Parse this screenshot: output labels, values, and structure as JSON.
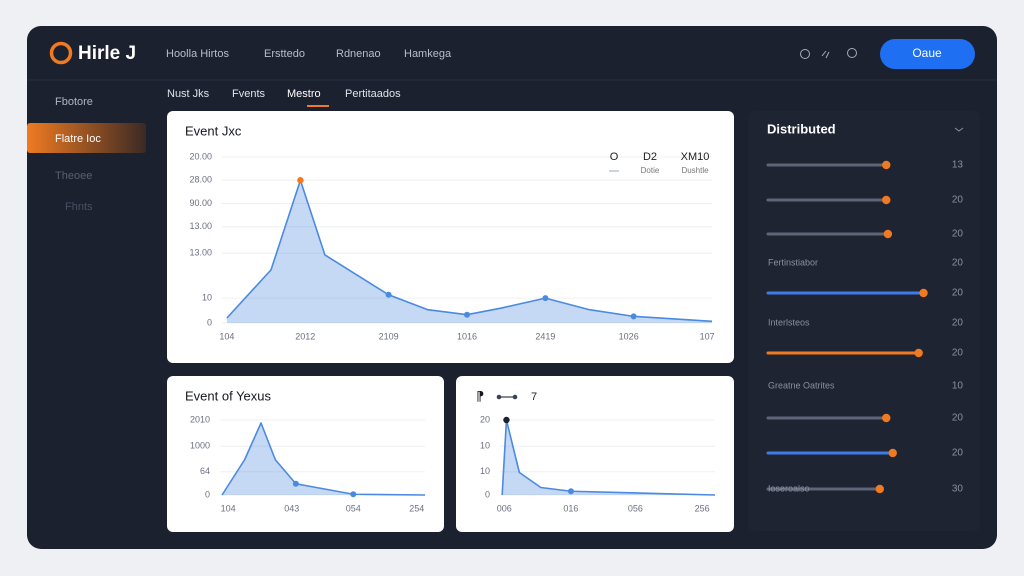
{
  "header": {
    "logo": "Hirle J",
    "nav": [
      "Hoolla Hirtos",
      "Ersttedo",
      "Rdnenao",
      "Hamkega"
    ],
    "button": "Oaue"
  },
  "sidebar": [
    "Fbotore",
    "Flatre Ioc",
    "Theoee",
    "Fhnts"
  ],
  "tabs": [
    "Nust Jks",
    "Fvents",
    "Mestro",
    "Pertitaados"
  ],
  "chart_data": [
    {
      "type": "area",
      "title": "Event Jxc",
      "legend": [
        {
          "name": "O"
        },
        {
          "name": "D2",
          "note": "Dotie"
        },
        {
          "name": "XM10",
          "note": "Dushtle"
        }
      ],
      "x": [
        1,
        10,
        16,
        21,
        34,
        42,
        50,
        57,
        66,
        75,
        84,
        100
      ],
      "xlim": [
        0,
        100
      ],
      "ylim": [
        0,
        100
      ],
      "xticks": [
        {
          "value": 1,
          "label": "104"
        },
        {
          "value": 17,
          "label": "2012"
        },
        {
          "value": 34,
          "label": "2109"
        },
        {
          "value": 50,
          "label": "1016"
        },
        {
          "value": 66,
          "label": "2419"
        },
        {
          "value": 83,
          "label": "1026"
        },
        {
          "value": 99,
          "label": "107"
        }
      ],
      "yticks": [
        {
          "value": 100,
          "label": "20.00"
        },
        {
          "value": 86,
          "label": "28.00"
        },
        {
          "value": 72,
          "label": "90.00"
        },
        {
          "value": 58,
          "label": "13.00"
        },
        {
          "value": 42,
          "label": "13.00"
        },
        {
          "value": 15,
          "label": "10"
        },
        0
      ],
      "grid": true,
      "series": [
        {
          "color": "#4a8ae0",
          "values": [
            3,
            32,
            86,
            41,
            17,
            8,
            5,
            9,
            15,
            8,
            4,
            1
          ],
          "markers": [
            4,
            6,
            8,
            10
          ],
          "highlight": 2,
          "highlight_color": "#f07a22"
        }
      ]
    },
    {
      "type": "area",
      "title": "Event of Yexus",
      "x": [
        1,
        12,
        20,
        27,
        37,
        65,
        100
      ],
      "xlim": [
        0,
        100
      ],
      "ylim": [
        0,
        100
      ],
      "xticks": [
        {
          "value": 4,
          "label": "104"
        },
        {
          "value": 35,
          "label": "043"
        },
        {
          "value": 65,
          "label": "054"
        },
        {
          "value": 96,
          "label": "254"
        }
      ],
      "yticks": [
        {
          "value": 100,
          "label": "2010"
        },
        {
          "value": 65,
          "label": "1000"
        },
        {
          "value": 31,
          "label": "64"
        },
        0
      ],
      "grid": true,
      "series": [
        {
          "color": "#4a8ae0",
          "values": [
            0,
            47,
            96,
            47,
            15,
            1,
            0
          ],
          "markers": [
            4,
            5
          ]
        }
      ]
    },
    {
      "type": "area",
      "title": "⁋",
      "legend_label": "7",
      "x": [
        1,
        3,
        9,
        19,
        33,
        100
      ],
      "xlim": [
        0,
        100
      ],
      "ylim": [
        0,
        100
      ],
      "xticks": [
        {
          "value": 2,
          "label": "006"
        },
        {
          "value": 33,
          "label": "016"
        },
        {
          "value": 63,
          "label": "056"
        },
        {
          "value": 94,
          "label": "256"
        }
      ],
      "yticks": [
        {
          "value": 100,
          "label": "20"
        },
        {
          "value": 65,
          "label": "10"
        },
        {
          "value": 31,
          "label": "10"
        },
        0
      ],
      "grid": true,
      "series": [
        {
          "color": "#4a8ae0",
          "values": [
            0,
            100,
            30,
            10,
            5,
            0
          ],
          "markers": [
            4
          ],
          "highlight": 1,
          "highlight_color": "#1c2130"
        }
      ]
    }
  ],
  "panel": {
    "title": "Distributed",
    "slider_lim": [
      0,
      100
    ],
    "rows": [
      {
        "number": "13",
        "slider": 73,
        "color": "#5d6578"
      },
      {
        "number": "20",
        "slider": 73,
        "color": "#5d6578"
      },
      {
        "number": "20",
        "slider": 74,
        "color": "#5d6578"
      },
      {
        "number": "20",
        "label": "Fertinstiabor"
      },
      {
        "number": "20",
        "slider": 96,
        "color": "#3d7be6"
      },
      {
        "number": "20",
        "label": "Interlsteos"
      },
      {
        "number": "20",
        "slider": 93,
        "color": "#f07a22"
      },
      {
        "number": "10",
        "label": "Greatne Oatrites"
      },
      {
        "number": "20",
        "slider": 73,
        "color": "#5d6578"
      },
      {
        "number": "20",
        "slider": 77,
        "color": "#3d7be6"
      },
      {
        "number": "30",
        "slider": 69,
        "color": "#5d6578",
        "label": "Ioseroalso"
      }
    ]
  }
}
